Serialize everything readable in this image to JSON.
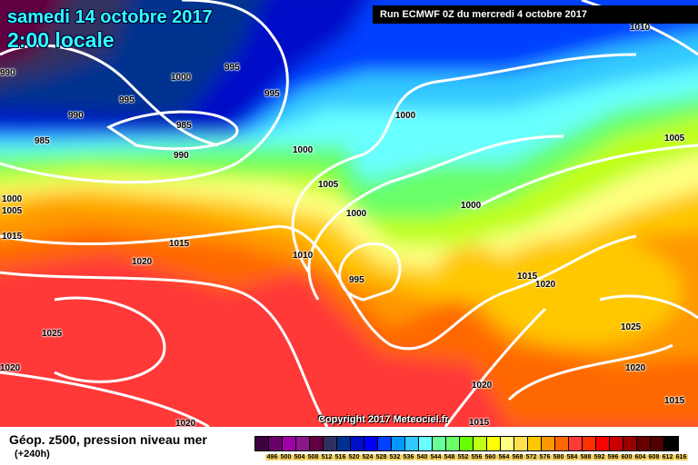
{
  "header": {
    "date": "samedi 14 octobre 2017",
    "time": "2:00 locale",
    "run": "Run ECMWF 0Z du mercredi 4 octobre 2017"
  },
  "copyright": "Copyright 2017 Meteociel.fr",
  "footer": {
    "title": "Géop. z500, pression niveau mer",
    "subtitle": "(+240h)"
  },
  "legend": {
    "values": [
      "496",
      "500",
      "504",
      "508",
      "512",
      "516",
      "520",
      "524",
      "528",
      "532",
      "536",
      "540",
      "544",
      "548",
      "552",
      "556",
      "560",
      "564",
      "568",
      "572",
      "576",
      "580",
      "584",
      "588",
      "592",
      "596",
      "600",
      "604",
      "608",
      "612",
      "616"
    ],
    "colors": [
      "#3c0040",
      "#6a0068",
      "#a000a8",
      "#881888",
      "#600040",
      "#303060",
      "#003090",
      "#0010c8",
      "#0000ff",
      "#0040ff",
      "#0098ff",
      "#30c8ff",
      "#68ffff",
      "#68ff98",
      "#68ff68",
      "#68ff00",
      "#c0ff18",
      "#ffff00",
      "#ffff80",
      "#ffe050",
      "#ffc800",
      "#ff9800",
      "#ff6800",
      "#ff3838",
      "#ff3000",
      "#ff0000",
      "#c80000",
      "#980000",
      "#680000",
      "#500000",
      "#000000"
    ]
  },
  "isobar_labels": [
    "995",
    "1000",
    "995",
    "990",
    "985",
    "985",
    "990",
    "995",
    "1000",
    "1005",
    "1000",
    "1000",
    "1000",
    "1005",
    "1010",
    "1000",
    "1005",
    "1015",
    "1015",
    "1010",
    "1020",
    "995",
    "1015",
    "1020",
    "1025",
    "1025",
    "1020",
    "1020",
    "1020",
    "1015",
    "1015",
    "1020",
    "990"
  ]
}
